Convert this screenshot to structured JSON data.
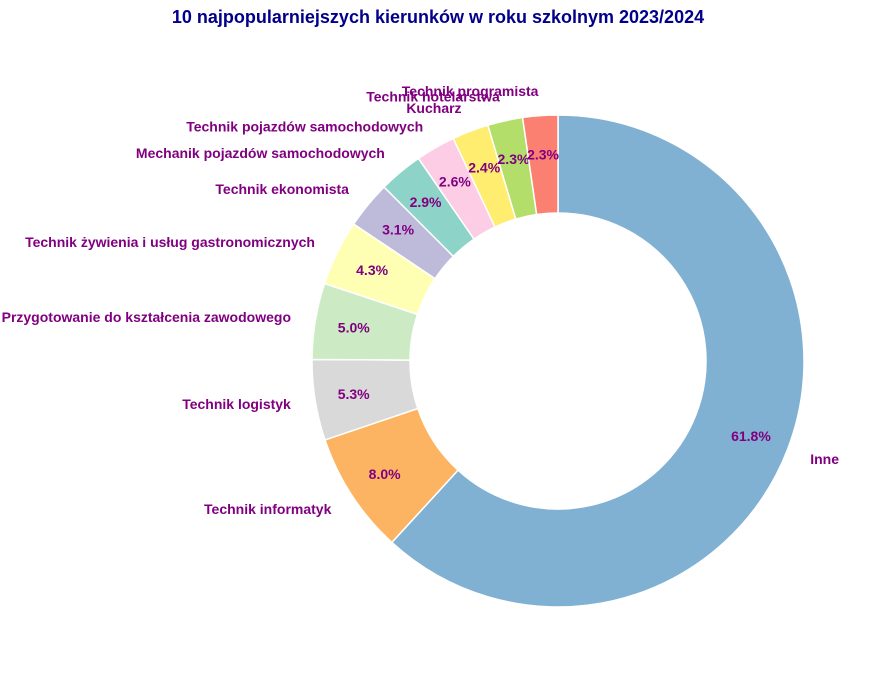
{
  "chart_data": {
    "type": "pie",
    "subtype": "donut",
    "title": "10 najpopularniejszych kierunków w roku szkolnym 2023/2024",
    "categories": [
      "Inne",
      "Technik informatyk",
      "Technik logistyk",
      "Przygotowanie do kształcenia zawodowego",
      "Technik żywienia i usług gastronomicznych",
      "Technik ekonomista",
      "Mechanik pojazdów samochodowych",
      "Technik pojazdów samochodowych",
      "Kucharz",
      "Technik hotelarstwa",
      "Technik programista"
    ],
    "values": [
      61.8,
      8.0,
      5.3,
      5.0,
      4.3,
      3.1,
      2.9,
      2.6,
      2.4,
      2.3,
      2.3
    ],
    "value_labels": [
      "61.8%",
      "8.0%",
      "5.3%",
      "5.0%",
      "4.3%",
      "3.1%",
      "2.9%",
      "2.6%",
      "2.4%",
      "2.3%",
      "2.3%"
    ],
    "colors": [
      "#80b1d3",
      "#fdb462",
      "#d9d9d9",
      "#ccebc5",
      "#ffffb3",
      "#bebada",
      "#8dd3c7",
      "#fccde5",
      "#ffed6f",
      "#b3de69",
      "#fb8072"
    ],
    "start_angle_deg": 90,
    "direction": "clockwise",
    "label_color": "#800080",
    "title_color": "#00008b"
  }
}
